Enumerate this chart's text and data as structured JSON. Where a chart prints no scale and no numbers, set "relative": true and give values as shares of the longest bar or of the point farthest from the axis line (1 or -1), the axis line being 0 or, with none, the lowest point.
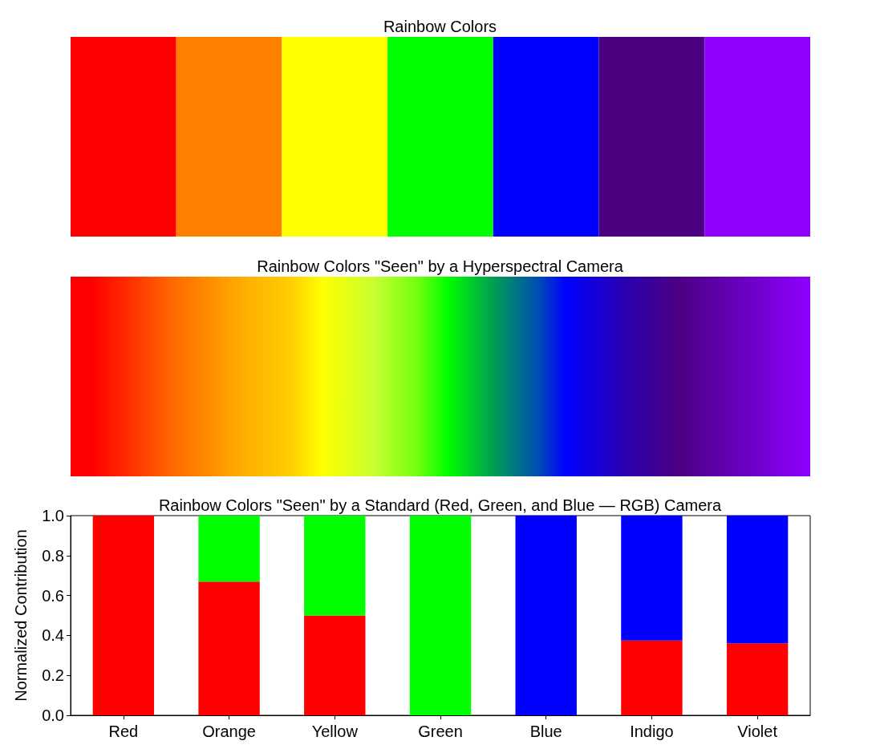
{
  "chart_data": [
    {
      "type": "bar",
      "title": "Rainbow Colors",
      "relative": true,
      "tick_labels": false,
      "categories": [
        null,
        null,
        null,
        null,
        null,
        null,
        null
      ],
      "values": [
        1,
        1,
        1,
        1,
        1,
        1,
        1
      ],
      "colors": [
        "#ff0000",
        "#ff8000",
        "#ffff00",
        "#00ff00",
        "#0000ff",
        "#4b0082",
        "#8f00ff"
      ]
    },
    {
      "type": "other",
      "title": "Rainbow Colors \"Seen\" by a Hyperspectral Camera"
    },
    {
      "type": "bar",
      "title": "Rainbow Colors \"Seen\" by a Standard (Red, Green, and Blue — RGB) Camera",
      "ylabel": "Normalized Contribution",
      "stacked": true,
      "categories": [
        "Red",
        "Orange",
        "Yellow",
        "Green",
        "Blue",
        "Indigo",
        "Violet"
      ],
      "series": [
        {
          "color": "#ff0000",
          "values": [
            1,
            0.67,
            0.5,
            0,
            0,
            0.375,
            0.36
          ]
        },
        {
          "color": "#00ff00",
          "values": [
            0,
            0.33,
            0.5,
            1,
            0,
            0,
            0
          ]
        },
        {
          "color": "#0000ff",
          "values": [
            0,
            0,
            0,
            0,
            1,
            0.625,
            0.64
          ]
        }
      ],
      "ylim": [
        0,
        1
      ],
      "yticks": [
        {
          "value": 0,
          "label": "0.0"
        },
        {
          "value": 0.2,
          "label": "0.2"
        },
        {
          "value": 0.4,
          "label": "0.4"
        },
        {
          "value": 0.6,
          "label": "0.6"
        },
        {
          "value": 0.8,
          "label": "0.8"
        },
        {
          "value": 1,
          "label": "1.0"
        }
      ]
    }
  ]
}
